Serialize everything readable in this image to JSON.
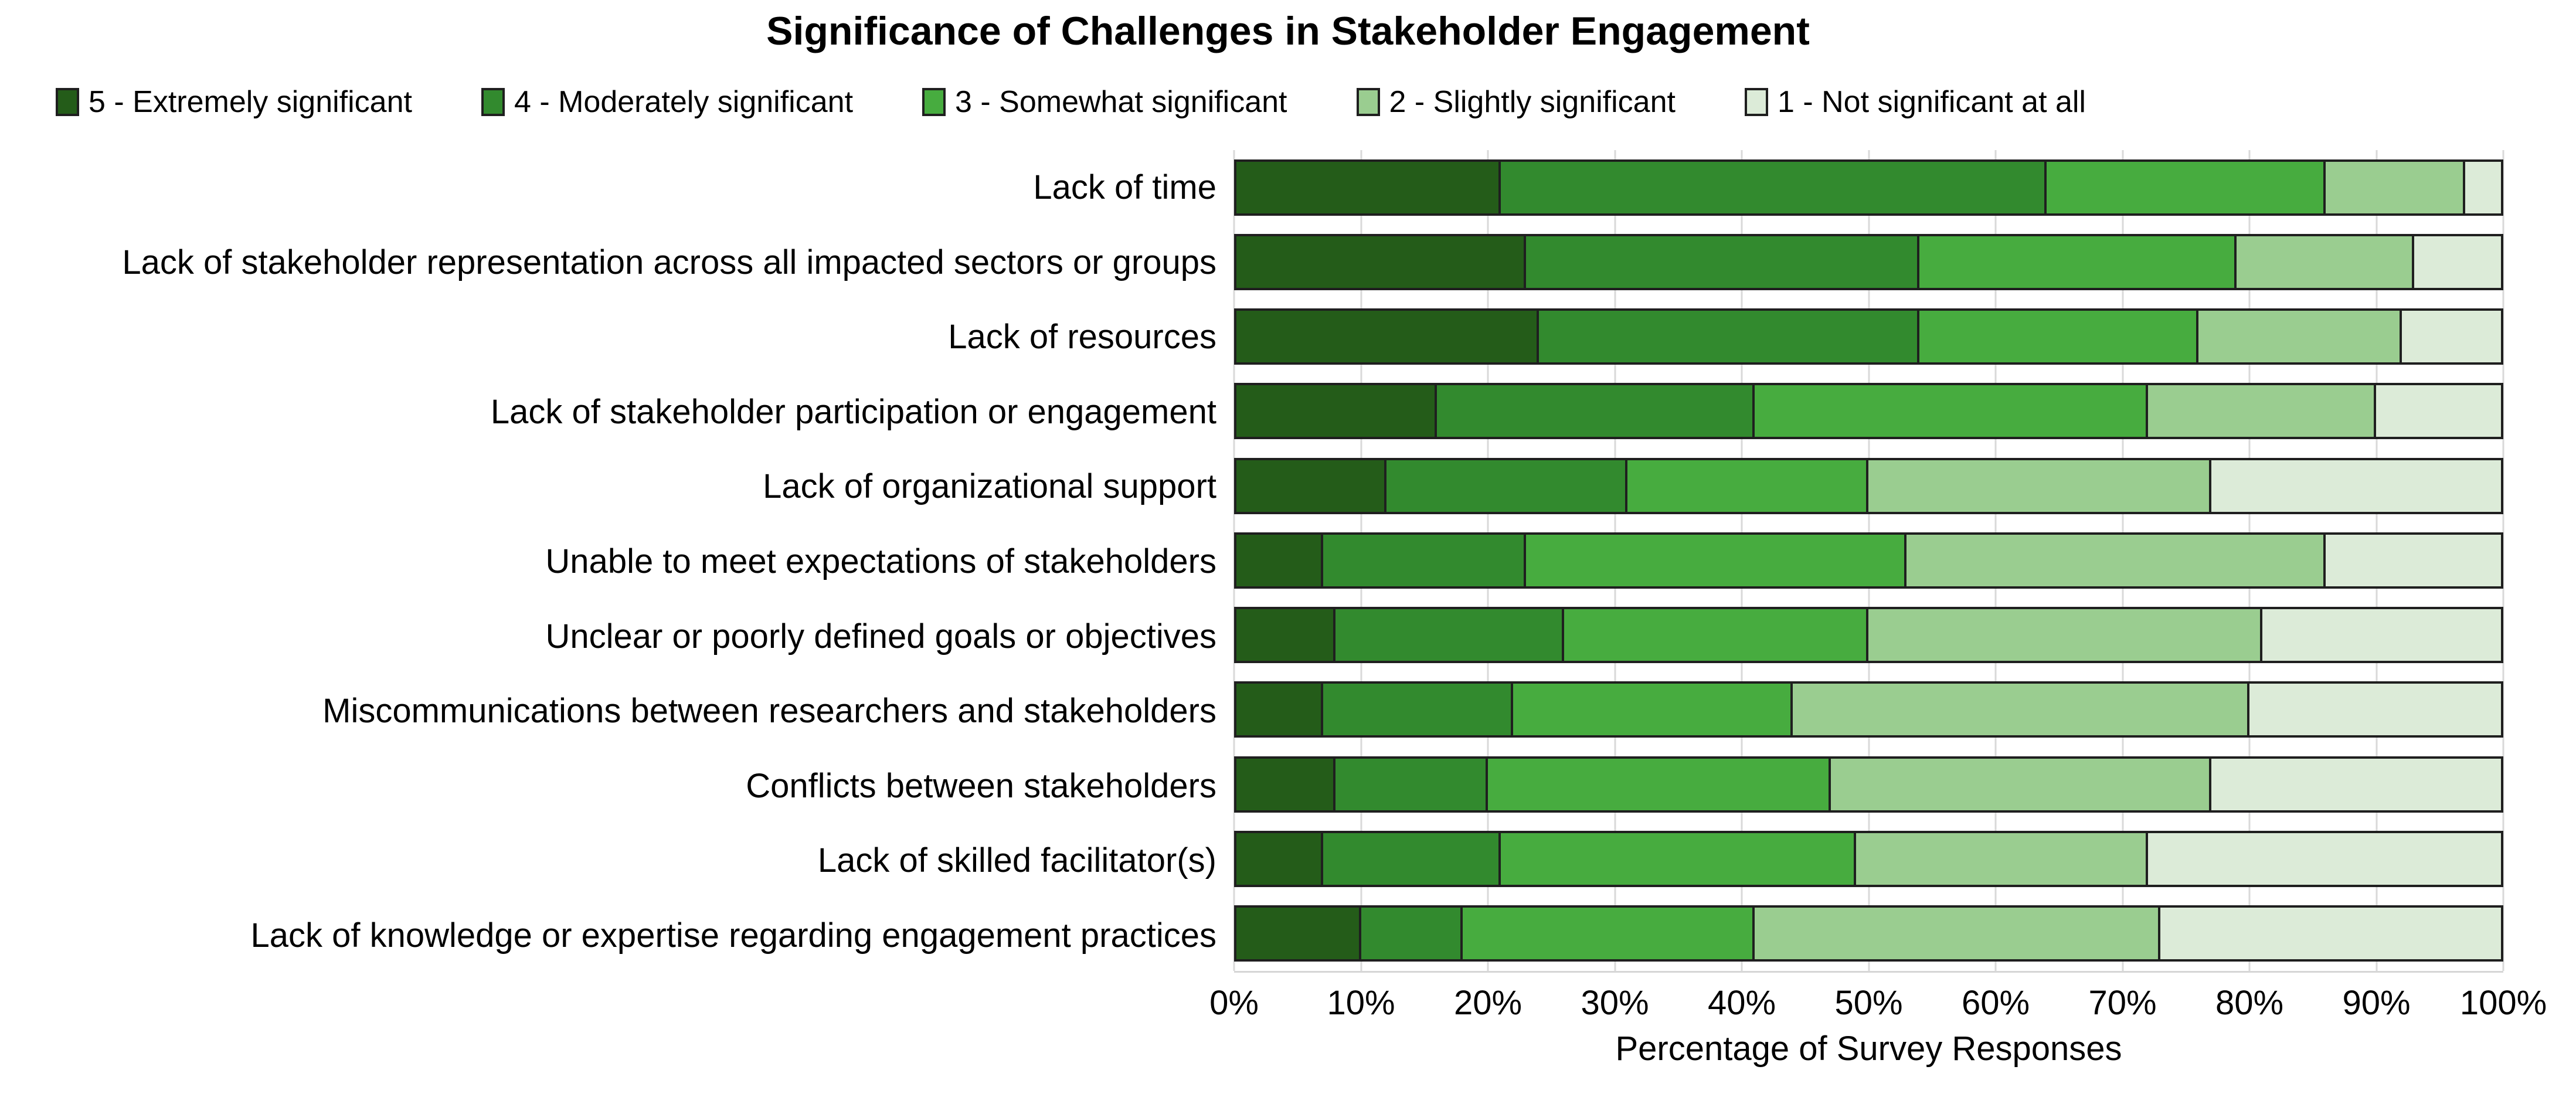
{
  "title": "Significance of Challenges in Stakeholder Engagement",
  "chart_data": {
    "type": "bar",
    "orientation": "horizontal",
    "stacked": true,
    "unit": "percent",
    "title": "Significance of Challenges in Stakeholder Engagement",
    "xlabel": "Percentage of Survey Responses",
    "ylabel": "",
    "xlim": [
      0,
      100
    ],
    "grid": "vertical",
    "legend_position": "top",
    "x_ticks": [
      "0%",
      "10%",
      "20%",
      "30%",
      "40%",
      "50%",
      "60%",
      "70%",
      "80%",
      "90%",
      "100%"
    ],
    "categories": [
      "Lack of time",
      "Lack of stakeholder representation across all impacted sectors or groups",
      "Lack of resources",
      "Lack of stakeholder participation or engagement",
      "Lack of organizational support",
      "Unable to meet expectations of stakeholders",
      "Unclear or poorly defined goals or objectives",
      "Miscommunications between researchers and stakeholders",
      "Conflicts between stakeholders",
      "Lack of skilled facilitator(s)",
      "Lack of knowledge or expertise regarding engagement practices"
    ],
    "series": [
      {
        "name": "5 - Extremely significant",
        "color": "#245C19",
        "values": [
          21,
          23,
          24,
          16,
          12,
          7,
          8,
          7,
          8,
          7,
          10
        ]
      },
      {
        "name": "4 - Moderately significant",
        "color": "#328A2E",
        "values": [
          43,
          31,
          30,
          25,
          19,
          16,
          18,
          15,
          12,
          14,
          8
        ]
      },
      {
        "name": "3 - Somewhat significant",
        "color": "#47AC3F",
        "values": [
          22,
          25,
          22,
          31,
          19,
          30,
          24,
          22,
          27,
          28,
          23
        ]
      },
      {
        "name": "2 - Slightly significant",
        "color": "#9ACD90",
        "values": [
          11,
          14,
          16,
          18,
          27,
          33,
          31,
          36,
          30,
          23,
          32
        ]
      },
      {
        "name": "1 - Not significant at all",
        "color": "#DCEBD8",
        "values": [
          3,
          7,
          8,
          10,
          23,
          14,
          19,
          20,
          23,
          28,
          27
        ]
      }
    ]
  },
  "colors": {
    "background": "#ffffff",
    "text": "#000000",
    "segment_border": "#1f1f1f",
    "gridline": "#d9d9d9"
  }
}
